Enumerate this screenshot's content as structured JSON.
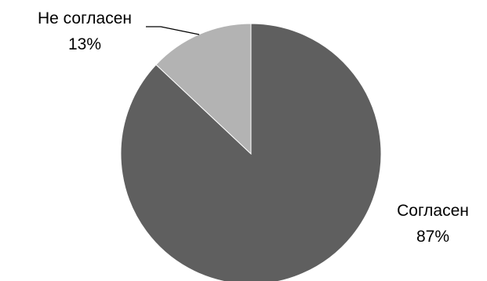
{
  "chart_data": {
    "type": "pie",
    "start_angle_deg": 0,
    "direction": "clockwise",
    "slices": [
      {
        "name": "Согласен",
        "value": 87,
        "label_pct": "87%",
        "color": "#5f5f5f"
      },
      {
        "name": "Не согласен",
        "value": 13,
        "label_pct": "13%",
        "color": "#b3b3b3"
      }
    ],
    "legend": "none"
  }
}
